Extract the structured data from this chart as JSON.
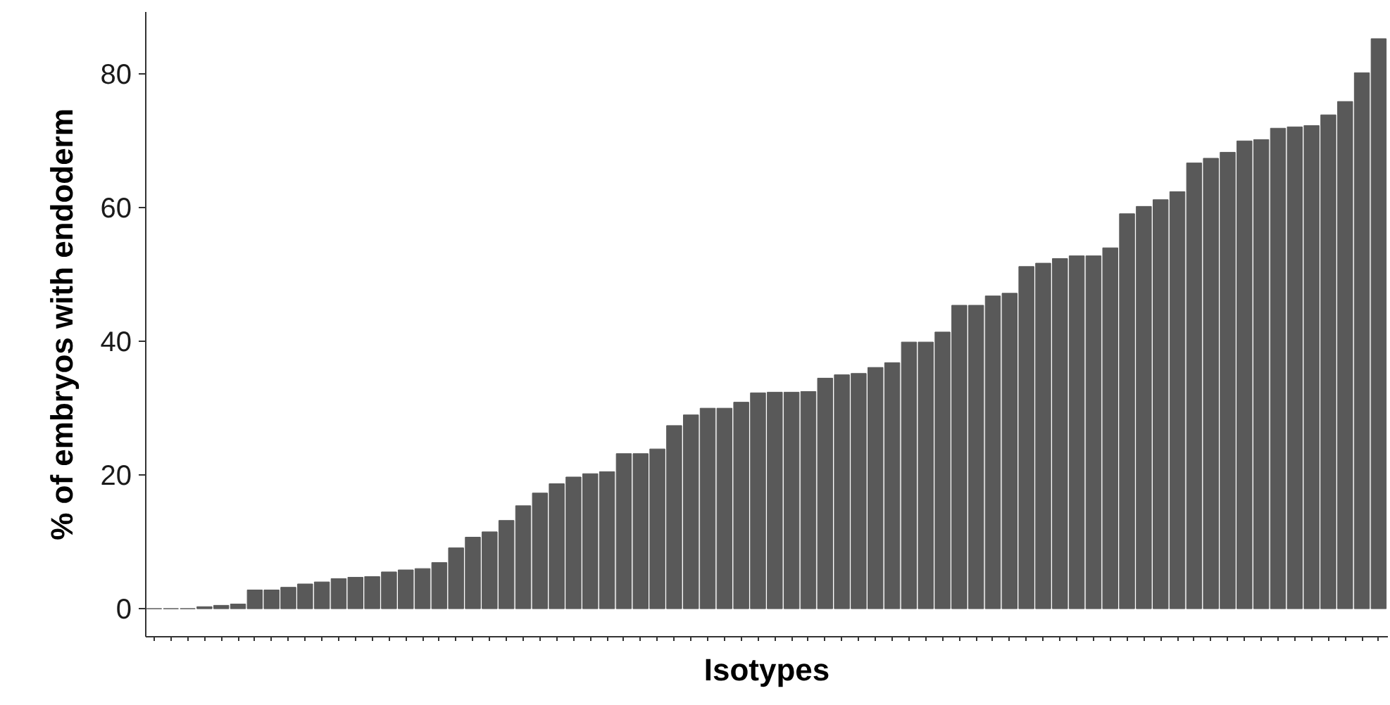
{
  "chart_data": {
    "type": "bar",
    "xlabel": "Isotypes",
    "ylabel": "% of embryos with endoderm",
    "categories": [
      null,
      null,
      null,
      null,
      null,
      null,
      null,
      null,
      null,
      null,
      null,
      null,
      null,
      null,
      null,
      null,
      null,
      null,
      null,
      null,
      null,
      null,
      null,
      null,
      null,
      null,
      null,
      null,
      null,
      null,
      null,
      null,
      null,
      null,
      null,
      null,
      null,
      null,
      null,
      null,
      null,
      null,
      null,
      null,
      null,
      null,
      null,
      null,
      null,
      null,
      null,
      null,
      null,
      null,
      null,
      null,
      null,
      null,
      null,
      null,
      null,
      null,
      null,
      null,
      null,
      null,
      null,
      null,
      null,
      null,
      null,
      null,
      null,
      null
    ],
    "values": [
      0,
      0,
      0,
      0.3,
      0.5,
      0.7,
      2.8,
      2.8,
      3.2,
      3.7,
      4.0,
      4.5,
      4.7,
      4.8,
      5.5,
      5.8,
      6.0,
      6.9,
      9.1,
      10.7,
      11.5,
      13.2,
      15.4,
      17.3,
      18.7,
      19.7,
      20.2,
      20.5,
      23.2,
      23.2,
      23.9,
      27.4,
      29.0,
      30.0,
      30.0,
      30.9,
      32.3,
      32.4,
      32.4,
      32.5,
      34.5,
      35.0,
      35.2,
      36.1,
      36.8,
      39.9,
      39.9,
      41.4,
      45.4,
      45.4,
      46.8,
      47.2,
      51.2,
      51.7,
      52.4,
      52.8,
      52.8,
      54.0,
      59.1,
      60.2,
      61.2,
      62.4,
      66.7,
      67.4,
      68.3,
      70.0,
      70.2,
      71.9,
      72.1,
      72.3,
      73.9,
      75.9,
      80.2,
      85.3
    ],
    "color": "#595959",
    "ylim": [
      -4.2,
      89.3
    ],
    "yticks": [
      0,
      20,
      40,
      60,
      80
    ],
    "grid": false,
    "tick_labels": "y"
  }
}
